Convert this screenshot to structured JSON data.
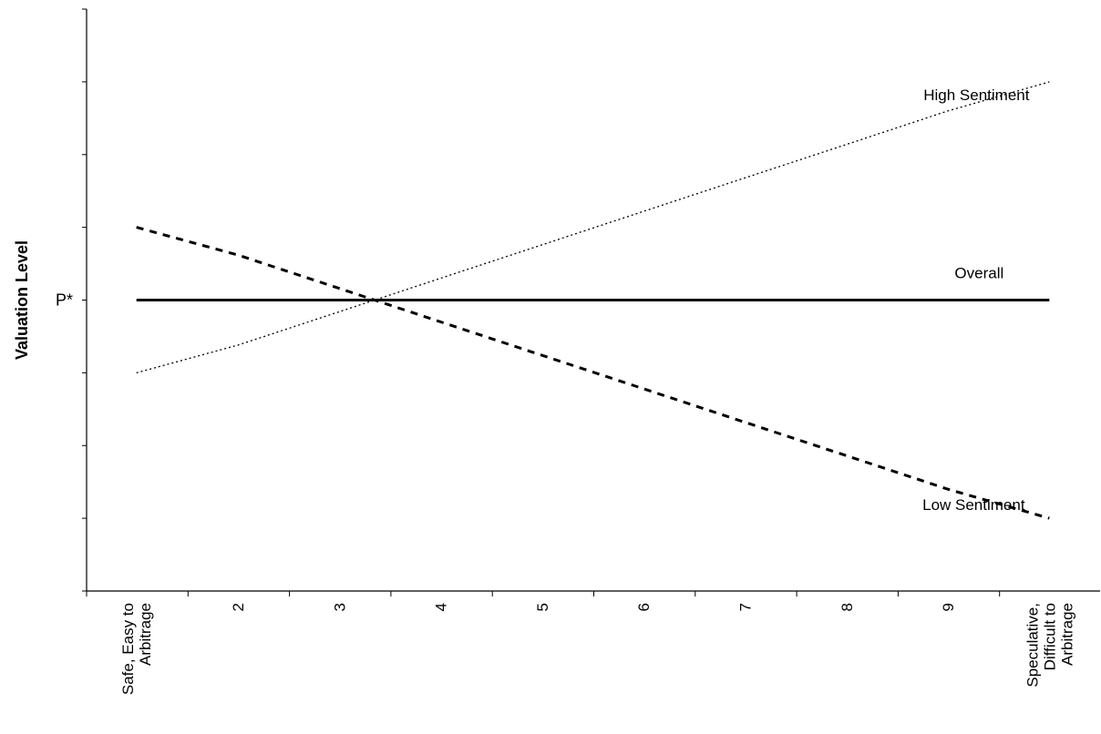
{
  "chart_data": {
    "type": "line",
    "ylabel": "Valuation Level",
    "y_reference_label": "P*",
    "y_reference_value": 0,
    "ylim": [
      -4,
      4
    ],
    "y_tick_count": 8,
    "grid": false,
    "x_categories": [
      [
        "Safe, Easy to",
        "Arbitrage"
      ],
      [
        "2"
      ],
      [
        "3"
      ],
      [
        "4"
      ],
      [
        "5"
      ],
      [
        "6"
      ],
      [
        "7"
      ],
      [
        "8"
      ],
      [
        "9"
      ],
      [
        "Speculative,",
        "Difficult to",
        "Arbitrage"
      ]
    ],
    "x": [
      1,
      2,
      3,
      4,
      5,
      6,
      7,
      8,
      9,
      10
    ],
    "series": [
      {
        "name": "High Sentiment",
        "style": "dotted",
        "values": [
          -1.0,
          -0.62,
          -0.16,
          0.3,
          0.76,
          1.22,
          1.68,
          2.14,
          2.6,
          3.0
        ]
      },
      {
        "name": "Overall",
        "style": "solid",
        "values": [
          0,
          0,
          0,
          0,
          0,
          0,
          0,
          0,
          0,
          0
        ]
      },
      {
        "name": "Low Sentiment",
        "style": "dashed",
        "values": [
          1.0,
          0.62,
          0.16,
          -0.3,
          -0.76,
          -1.22,
          -1.68,
          -2.14,
          -2.6,
          -3.0
        ]
      }
    ],
    "series_labels_position": "right"
  }
}
